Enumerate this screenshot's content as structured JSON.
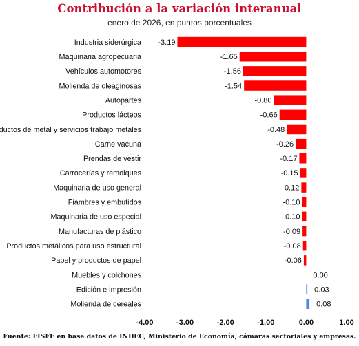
{
  "chart_data": {
    "type": "bar",
    "orientation": "horizontal",
    "title": "Contribución a la variación interanual",
    "subtitle": "enero de 2026, en puntos porcentuales",
    "categories": [
      "Industria siderúrgica",
      "Maquinaria agropecuaria",
      "Vehículos automotores",
      "Molienda de oleaginosas",
      "Autopartes",
      "Productos lácteos",
      "Productos de metal y servicios trabajo metales",
      "Carne vacuna",
      "Prendas de vestir",
      "Carrocerías y remolques",
      "Maquinaria de uso general",
      "Fiambres y embutidos",
      "Maquinaria de uso especial",
      "Manufacturas de plástico",
      "Productos metálicos para uso estructural",
      "Papel y productos de papel",
      "Muebles y colchones",
      "Edición e impresión",
      "Molienda de cereales"
    ],
    "values": [
      -3.19,
      -1.65,
      -1.56,
      -1.54,
      -0.8,
      -0.66,
      -0.48,
      -0.26,
      -0.17,
      -0.15,
      -0.12,
      -0.1,
      -0.1,
      -0.09,
      -0.08,
      -0.06,
      0.0,
      0.03,
      0.08
    ],
    "value_labels": [
      "-3.19",
      "-1.65",
      "-1.56",
      "-1.54",
      "-0.80",
      "-0.66",
      "-0.48",
      "-0.26",
      "-0.17",
      "-0.15",
      "-0.12",
      "-0.10",
      "-0.10",
      "-0.09",
      "-0.08",
      "-0.06",
      "0.00",
      "0.03",
      "0.08"
    ],
    "xlim": [
      -4.0,
      1.0
    ],
    "xticks": [
      "-4.00",
      "-3.00",
      "-2.00",
      "-1.00",
      "0.00",
      "1.00"
    ],
    "negative_color": "#ff0000",
    "positive_color": "#4a86e8",
    "grid": false,
    "legend": false
  },
  "source": "Fuente: FISFE en base datos de INDEC, Ministerio de Economía, cámaras sectoriales y empresas."
}
